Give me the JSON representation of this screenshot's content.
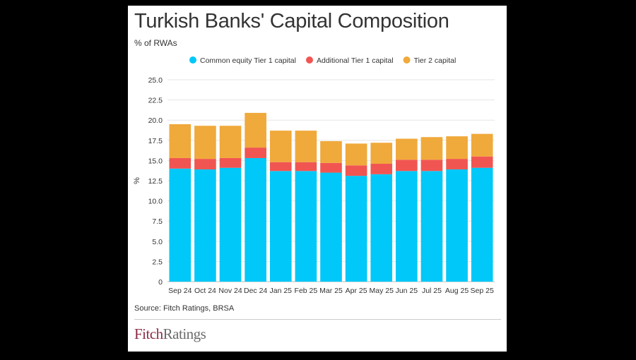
{
  "chart_data": {
    "type": "bar",
    "stacked": true,
    "title": "Turkish Banks' Capital Composition",
    "subtitle": "% of RWAs",
    "ylabel": "%",
    "xlabel": "",
    "ylim": [
      0,
      25
    ],
    "yticks": [
      "0",
      "2.5",
      "5.0",
      "7.5",
      "10.0",
      "12.5",
      "15.0",
      "17.5",
      "20.0",
      "22.5",
      "25.0"
    ],
    "grid": true,
    "legend_position": "top",
    "categories": [
      "Sep 24",
      "Oct 24",
      "Nov 24",
      "Dec 24",
      "Jan 25",
      "Feb 25",
      "Mar 25",
      "Apr 25",
      "May 25",
      "Jun 25",
      "Jul 25",
      "Aug 25",
      "Sep 25"
    ],
    "series": [
      {
        "name": "Common equity Tier 1 capital",
        "color": "#00c8f8",
        "values": [
          14.0,
          13.9,
          14.1,
          15.3,
          13.7,
          13.7,
          13.5,
          13.1,
          13.3,
          13.7,
          13.7,
          13.9,
          14.1
        ]
      },
      {
        "name": "Additional Tier 1 capital",
        "color": "#f15552",
        "values": [
          1.3,
          1.3,
          1.2,
          1.3,
          1.1,
          1.1,
          1.2,
          1.3,
          1.3,
          1.4,
          1.4,
          1.3,
          1.4
        ]
      },
      {
        "name": "Tier 2 capital",
        "color": "#f0a93b",
        "values": [
          4.2,
          4.1,
          4.0,
          4.3,
          3.9,
          3.9,
          2.7,
          2.7,
          2.6,
          2.6,
          2.8,
          2.8,
          2.8
        ]
      }
    ]
  },
  "source": "Source: Fitch Ratings, BRSA",
  "logo": {
    "part_a": "Fitch",
    "part_b": "Ratings"
  },
  "colors": {
    "background": "#000000",
    "card": "#ffffff",
    "grid": "#e6e6e6",
    "text": "#333333"
  }
}
